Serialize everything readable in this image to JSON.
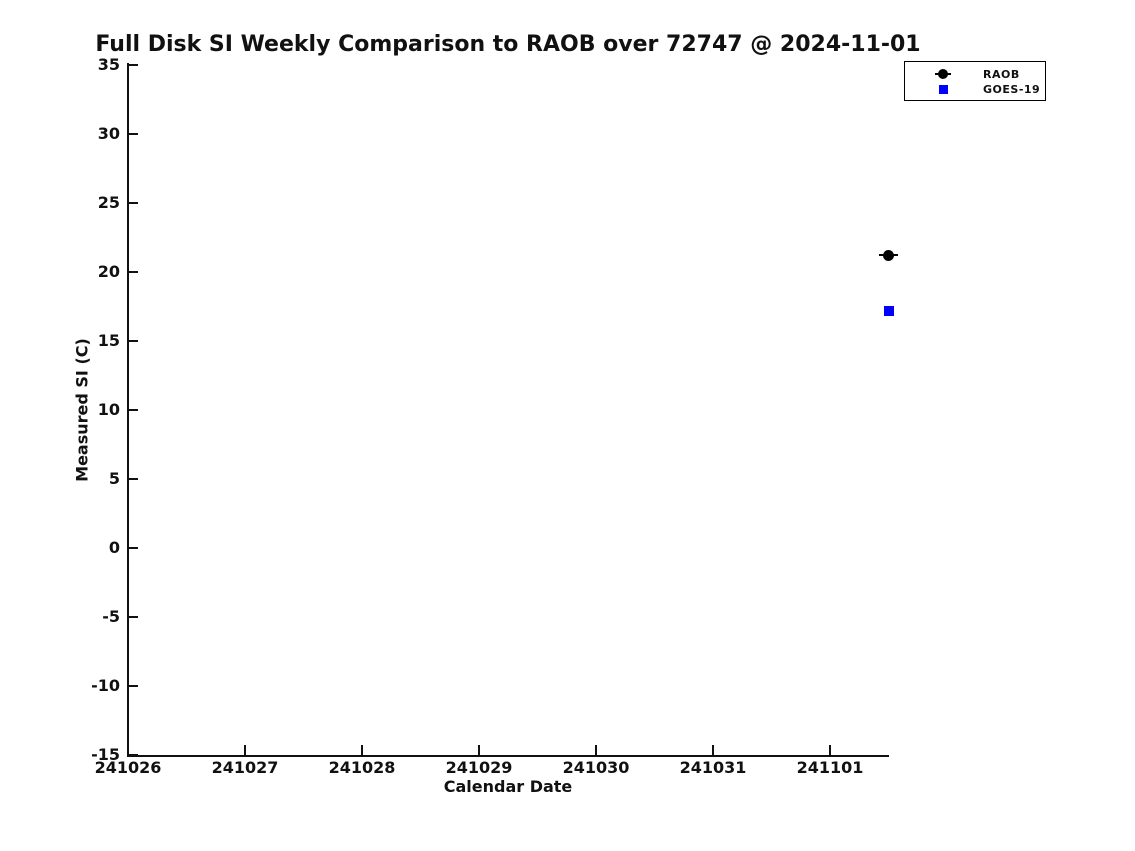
{
  "chart_data": {
    "type": "scatter",
    "title": "Full Disk SI Weekly Comparison to RAOB over 72747 @ 2024-11-01",
    "xlabel": "Calendar Date",
    "ylabel": "Measured SI (C)",
    "grid": false,
    "background_color": "#ffffff",
    "x_axis": {
      "tick_labels": [
        "241026",
        "241027",
        "241028",
        "241029",
        "241030",
        "241031",
        "241101"
      ]
    },
    "y_axis": {
      "ticks": [
        35,
        30,
        25,
        20,
        15,
        10,
        5,
        0,
        -5,
        -10,
        -15
      ],
      "min": -15,
      "max": 35
    },
    "legend": {
      "position": "upper right",
      "entries": [
        {
          "label": "RAOB",
          "marker": "circle",
          "color": "#000000"
        },
        {
          "label": "GOES-19",
          "marker": "square",
          "color": "#0000ff"
        }
      ]
    },
    "series": [
      {
        "name": "RAOB",
        "marker": "circle",
        "color": "#000000",
        "points": [
          {
            "x_tick": "241101",
            "x_day_offset": 6.5,
            "y": 21.2
          }
        ]
      },
      {
        "name": "GOES-19",
        "marker": "square",
        "color": "#0000ff",
        "points": [
          {
            "x_tick": "241101",
            "x_day_offset": 6.5,
            "y": 17.2
          }
        ]
      }
    ]
  }
}
